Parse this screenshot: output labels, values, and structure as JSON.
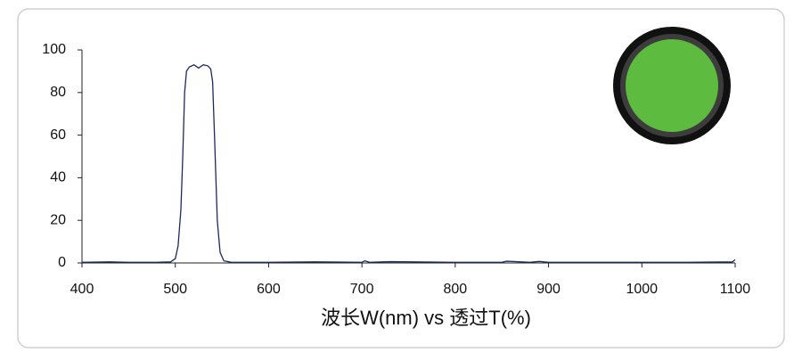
{
  "chart_data": {
    "type": "line",
    "xlabel": "波长W(nm) vs 透过T(%)",
    "x": [
      400,
      430,
      450,
      480,
      495,
      500,
      503,
      506,
      508,
      510,
      512,
      515,
      520,
      525,
      530,
      535,
      538,
      540,
      542,
      545,
      548,
      552,
      560,
      600,
      650,
      700,
      703,
      708,
      730,
      800,
      850,
      855,
      880,
      890,
      900,
      950,
      1000,
      1050,
      1097,
      1100
    ],
    "values": [
      0.3,
      0.5,
      0.3,
      0.3,
      0.5,
      2,
      8,
      25,
      50,
      80,
      90,
      92,
      93,
      91.5,
      93,
      92.5,
      91,
      85,
      60,
      20,
      5,
      1,
      0.3,
      0.3,
      0.5,
      0.3,
      1,
      0.3,
      0.6,
      0.3,
      0.3,
      0.8,
      0.3,
      0.7,
      0.3,
      0.3,
      0.3,
      0.3,
      0.5,
      1.5
    ],
    "color": "#1c2b5e",
    "xlim": [
      400,
      1100
    ],
    "xticks": [
      400,
      500,
      600,
      700,
      800,
      900,
      1000,
      1100
    ],
    "ylim": [
      0,
      100
    ],
    "yticks": [
      0,
      20,
      40,
      60,
      80,
      100
    ],
    "grid": false
  }
}
